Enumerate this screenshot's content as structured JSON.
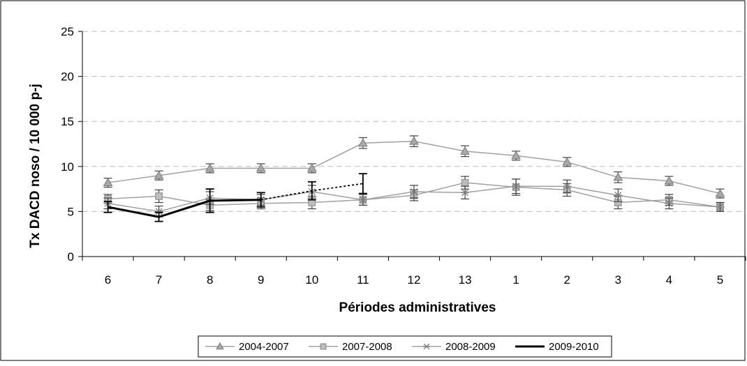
{
  "chart_data": {
    "type": "line",
    "title": "",
    "xlabel": "Périodes administratives",
    "ylabel": "Tx DACD noso / 10 000 p-j",
    "categories": [
      "6",
      "7",
      "8",
      "9",
      "10",
      "11",
      "12",
      "13",
      "1",
      "2",
      "3",
      "4",
      "5"
    ],
    "ylim": [
      0,
      25
    ],
    "yticks": [
      "0",
      "5",
      "10",
      "15",
      "20",
      "25"
    ],
    "grid": "horizontal dashed",
    "legend_position": "bottom",
    "series": [
      {
        "name": "2004-2007",
        "marker": "triangle",
        "color": "#A0A0A0",
        "values": [
          8.2,
          9.0,
          9.8,
          9.8,
          9.8,
          12.6,
          12.8,
          11.7,
          11.2,
          10.5,
          8.8,
          8.4,
          7.0
        ],
        "err": [
          0.5,
          0.5,
          0.5,
          0.5,
          0.5,
          0.6,
          0.6,
          0.6,
          0.5,
          0.5,
          0.6,
          0.5,
          0.5
        ]
      },
      {
        "name": "2007-2008",
        "marker": "square",
        "color": "#A0A0A0",
        "values": [
          6.4,
          6.7,
          5.7,
          5.9,
          6.0,
          6.3,
          6.8,
          8.2,
          7.7,
          7.4,
          6.0,
          6.3,
          5.5
        ],
        "err": [
          0.5,
          0.7,
          0.6,
          0.6,
          0.7,
          0.6,
          0.6,
          0.7,
          0.9,
          0.7,
          0.7,
          0.6,
          0.5
        ]
      },
      {
        "name": "2008-2009",
        "marker": "star",
        "color": "#A0A0A0",
        "values": [
          5.9,
          5.0,
          6.5,
          6.3,
          7.2,
          6.3,
          7.2,
          7.1,
          7.8,
          7.8,
          6.8,
          5.9,
          5.5
        ],
        "err": [
          0.6,
          0.6,
          0.7,
          0.6,
          0.7,
          0.6,
          0.7,
          0.7,
          0.8,
          0.7,
          0.7,
          0.6,
          0.5
        ]
      },
      {
        "name": "2009-2010",
        "marker": "none",
        "color": "#000000",
        "values": [
          5.5,
          4.4,
          6.2,
          6.3,
          null,
          null,
          null,
          null,
          null,
          null,
          null,
          null,
          null
        ],
        "err": [
          0.6,
          0.5,
          1.3,
          0.8,
          null,
          null,
          null,
          null,
          null,
          null,
          null,
          null,
          null
        ]
      }
    ],
    "projection": {
      "series": "2009-2010",
      "style": "dotted",
      "x": [
        "9",
        "10",
        "11"
      ],
      "values": [
        6.3,
        7.3,
        8.1
      ],
      "err": [
        null,
        1.0,
        1.1
      ]
    }
  }
}
